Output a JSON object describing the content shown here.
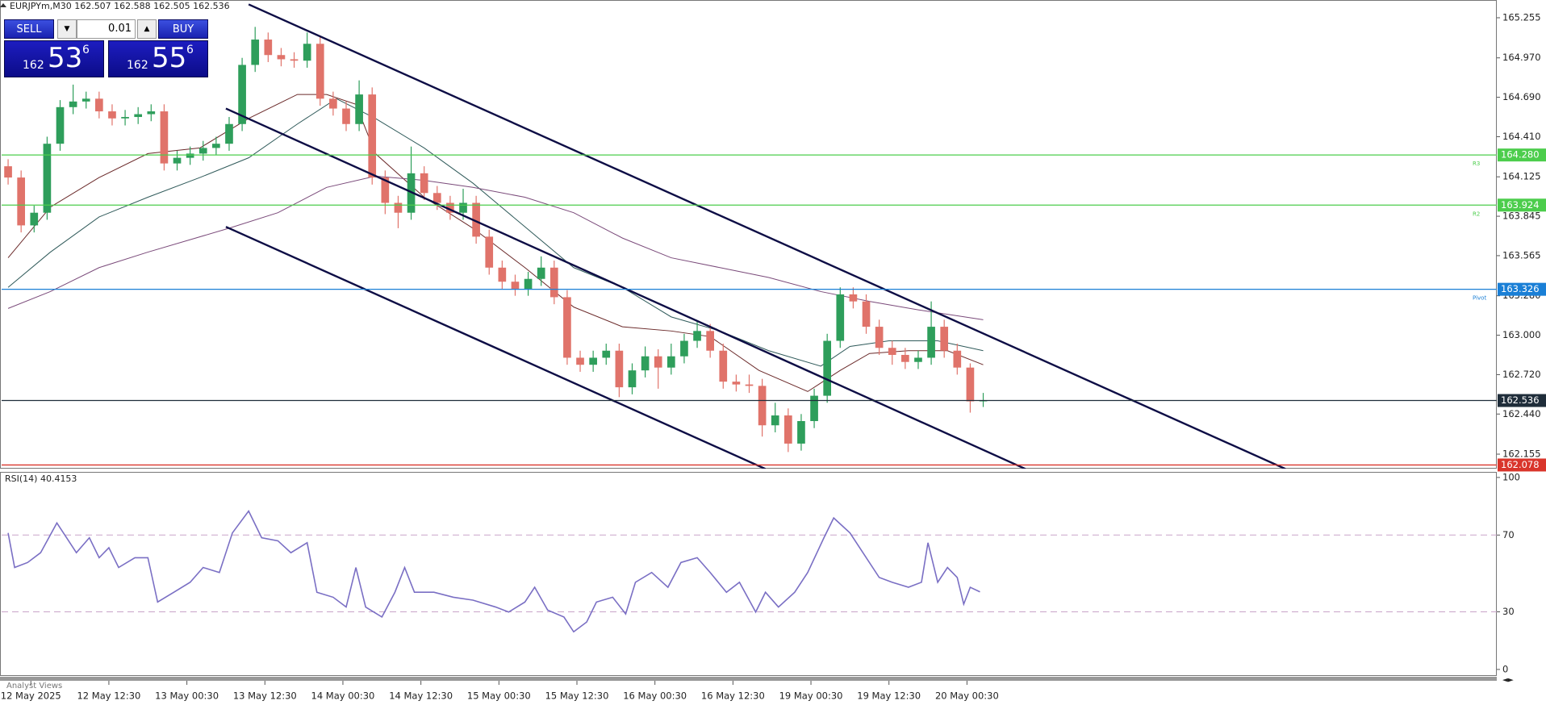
{
  "chart_data": [
    {
      "type": "candlestick",
      "title": "EURJPYm,M30  162.507 162.588 162.505 162.536",
      "up_color": "#2e9e5b",
      "down_color": "#e0736a",
      "xlim": [
        0,
        460
      ],
      "ylim": [
        162.052,
        165.381
      ],
      "yticks": [
        165.255,
        {
          "value": 164.97,
          "label": "164.970"
        },
        {
          "value": 164.69,
          "label": "164.690"
        },
        {
          "value": 164.41,
          "label": "164.410"
        },
        164.125,
        163.845,
        163.565,
        {
          "value": 163.28,
          "label": "163.280"
        },
        {
          "value": 163.0,
          "label": "163.000"
        },
        {
          "value": 162.72,
          "label": "162.720"
        },
        {
          "value": 162.44,
          "label": "162.440"
        },
        162.155
      ],
      "x": [
        2,
        6,
        10,
        14,
        18,
        22,
        26,
        30,
        34,
        38,
        42,
        46,
        50,
        54,
        58,
        62,
        66,
        70,
        74,
        78,
        82,
        86,
        90,
        94,
        98,
        102,
        106,
        110,
        114,
        118,
        122,
        126,
        130,
        134,
        138,
        142,
        146,
        150,
        154,
        158,
        162,
        166,
        170,
        174,
        178,
        182,
        186,
        190,
        194,
        198,
        202,
        206,
        210,
        214,
        218,
        222,
        226,
        230,
        234,
        238,
        242,
        246,
        250,
        254,
        258,
        262,
        266,
        270,
        274,
        278,
        282,
        286,
        290,
        294,
        298,
        302
      ],
      "open": [
        164.2,
        164.12,
        163.78,
        163.87,
        164.36,
        164.62,
        164.66,
        164.68,
        164.59,
        164.54,
        164.55,
        164.57,
        164.59,
        164.22,
        164.26,
        164.29,
        164.33,
        164.36,
        164.5,
        164.92,
        165.1,
        164.99,
        164.96,
        164.95,
        165.07,
        164.68,
        164.61,
        164.5,
        164.71,
        164.12,
        163.94,
        163.87,
        164.15,
        164.01,
        163.94,
        163.87,
        163.94,
        163.7,
        163.48,
        163.38,
        163.33,
        163.4,
        163.48,
        163.27,
        162.84,
        162.79,
        162.84,
        162.89,
        162.63,
        162.75,
        162.85,
        162.77,
        162.85,
        162.96,
        163.03,
        162.89,
        162.67,
        162.65,
        162.64,
        162.36,
        162.43,
        162.23,
        162.39,
        162.57,
        162.96,
        163.29,
        163.24,
        163.06,
        162.91,
        162.86,
        162.81,
        162.84,
        163.06,
        162.89,
        162.77,
        162.53
      ],
      "high": [
        164.25,
        164.17,
        163.92,
        164.41,
        164.67,
        164.78,
        164.73,
        164.73,
        164.64,
        164.6,
        164.62,
        164.64,
        164.64,
        164.31,
        164.34,
        164.38,
        164.41,
        164.55,
        164.97,
        165.19,
        165.15,
        165.04,
        165.01,
        165.15,
        165.12,
        164.73,
        164.66,
        164.81,
        164.76,
        164.17,
        163.99,
        164.34,
        164.2,
        164.06,
        163.99,
        164.04,
        163.99,
        163.75,
        163.53,
        163.43,
        163.45,
        163.56,
        163.53,
        163.32,
        162.89,
        162.89,
        162.94,
        162.94,
        162.8,
        162.92,
        162.9,
        162.94,
        163.01,
        163.1,
        163.08,
        162.94,
        162.72,
        162.72,
        162.69,
        162.52,
        162.48,
        162.44,
        162.62,
        163.01,
        163.34,
        163.34,
        163.29,
        163.11,
        162.96,
        162.91,
        162.89,
        163.24,
        163.11,
        162.94,
        162.8,
        162.59
      ],
      "low": [
        164.07,
        163.73,
        163.73,
        163.82,
        164.31,
        164.57,
        164.61,
        164.54,
        164.49,
        164.49,
        164.5,
        164.52,
        164.17,
        164.17,
        164.21,
        164.24,
        164.28,
        164.31,
        164.45,
        164.87,
        164.94,
        164.91,
        164.9,
        164.9,
        164.63,
        164.56,
        164.45,
        164.45,
        164.07,
        163.86,
        163.76,
        163.82,
        163.96,
        163.89,
        163.82,
        163.82,
        163.65,
        163.43,
        163.33,
        163.28,
        163.28,
        163.35,
        163.22,
        162.79,
        162.74,
        162.74,
        162.79,
        162.56,
        162.58,
        162.7,
        162.62,
        162.72,
        162.8,
        162.91,
        162.84,
        162.62,
        162.6,
        162.59,
        162.28,
        162.31,
        162.17,
        162.18,
        162.34,
        162.52,
        162.91,
        163.19,
        163.01,
        162.86,
        162.79,
        162.76,
        162.76,
        162.79,
        162.84,
        162.72,
        162.45,
        162.49
      ],
      "close": [
        164.12,
        163.78,
        163.87,
        164.36,
        164.62,
        164.66,
        164.68,
        164.59,
        164.54,
        164.55,
        164.57,
        164.59,
        164.22,
        164.26,
        164.29,
        164.33,
        164.36,
        164.5,
        164.92,
        165.1,
        164.99,
        164.96,
        164.95,
        165.07,
        164.68,
        164.61,
        164.5,
        164.71,
        164.12,
        163.94,
        163.87,
        164.15,
        164.01,
        163.94,
        163.87,
        163.94,
        163.7,
        163.48,
        163.38,
        163.33,
        163.4,
        163.48,
        163.27,
        162.84,
        162.79,
        162.84,
        162.89,
        162.63,
        162.75,
        162.85,
        162.77,
        162.85,
        162.96,
        163.03,
        162.89,
        162.67,
        162.65,
        162.64,
        162.36,
        162.43,
        162.23,
        162.39,
        162.57,
        162.96,
        163.29,
        163.24,
        163.06,
        162.91,
        162.86,
        162.81,
        162.84,
        163.06,
        162.89,
        162.77,
        162.53,
        162.536
      ],
      "moving_averages": [
        {
          "color": "#6b2a2a",
          "x": [
            2,
            15,
            30,
            45,
            61,
            76,
            91,
            100,
            109,
            115,
            130,
            145,
            161,
            176,
            191,
            206,
            218,
            233,
            248,
            258,
            267,
            279,
            291,
            302
          ],
          "values": [
            163.55,
            163.91,
            164.12,
            164.29,
            164.33,
            164.54,
            164.71,
            164.71,
            164.64,
            164.29,
            163.98,
            163.76,
            163.48,
            163.2,
            163.06,
            163.03,
            162.99,
            162.75,
            162.6,
            162.75,
            162.87,
            162.89,
            162.89,
            162.79
          ]
        },
        {
          "color": "#2f5a5a",
          "x": [
            2,
            15,
            30,
            45,
            61,
            76,
            91,
            103,
            115,
            130,
            145,
            161,
            176,
            191,
            206,
            221,
            236,
            252,
            261,
            273,
            288,
            302
          ],
          "values": [
            163.34,
            163.59,
            163.84,
            163.98,
            164.12,
            164.26,
            164.5,
            164.68,
            164.54,
            164.33,
            164.08,
            163.77,
            163.48,
            163.34,
            163.13,
            163.03,
            162.89,
            162.78,
            162.92,
            162.96,
            162.96,
            162.89
          ]
        },
        {
          "color": "#7a4a7a",
          "x": [
            2,
            15,
            30,
            45,
            70,
            85,
            100,
            115,
            130,
            145,
            161,
            176,
            191,
            206,
            221,
            236,
            252,
            267,
            282,
            302
          ],
          "values": [
            163.19,
            163.31,
            163.48,
            163.59,
            163.76,
            163.87,
            164.05,
            164.13,
            164.1,
            164.05,
            163.98,
            163.87,
            163.69,
            163.55,
            163.48,
            163.41,
            163.31,
            163.24,
            163.18,
            163.11
          ]
        }
      ],
      "trendlines": [
        {
          "color": "#0d0d45",
          "x": [
            76,
            395
          ],
          "values": [
            165.35,
            162.05
          ]
        },
        {
          "color": "#0d0d45",
          "x": [
            69,
            315
          ],
          "values": [
            164.61,
            162.05
          ]
        },
        {
          "color": "#0d0d45",
          "x": [
            69,
            235
          ],
          "values": [
            163.77,
            162.05
          ]
        }
      ],
      "levels": [
        {
          "value": 164.28,
          "label": "164.280",
          "color": "#4ccd4c",
          "tag": "R3"
        },
        {
          "value": 163.924,
          "label": "163.924",
          "color": "#4ccd4c",
          "tag": "R2"
        },
        {
          "value": 163.326,
          "label": "163.326",
          "color": "#1a7fd6",
          "tag": "Pivot"
        },
        {
          "value": 162.536,
          "label": "162.536",
          "color": "#1f2d3a"
        },
        {
          "value": 162.078,
          "label": "162.078",
          "color": "#d9352b"
        }
      ]
    },
    {
      "type": "line",
      "title": "RSI(14) 40.4153",
      "color": "#7a6fc4",
      "xlim": [
        0,
        460
      ],
      "ylim": [
        -3.4,
        102.9
      ],
      "yticks": [
        0,
        30,
        70,
        100
      ],
      "levels": [
        30,
        70
      ],
      "xticks": [
        {
          "value": 9,
          "label": "12 May 2025"
        },
        {
          "value": 33,
          "label": "12 May 12:30"
        },
        {
          "value": 57,
          "label": "13 May 00:30"
        },
        {
          "value": 81,
          "label": "13 May 12:30"
        },
        {
          "value": 105,
          "label": "14 May 00:30"
        },
        {
          "value": 129,
          "label": "14 May 12:30"
        },
        {
          "value": 153,
          "label": "15 May 00:30"
        },
        {
          "value": 177,
          "label": "15 May 12:30"
        },
        {
          "value": 201,
          "label": "16 May 00:30"
        },
        {
          "value": 225,
          "label": "16 May 12:30"
        },
        {
          "value": 249,
          "label": "19 May 00:30"
        },
        {
          "value": 273,
          "label": "19 May 12:30"
        },
        {
          "value": 297,
          "label": "20 May 00:30"
        }
      ],
      "x": [
        2,
        4,
        8,
        12,
        17,
        20,
        23,
        27,
        30,
        33,
        36,
        41,
        45,
        48,
        53,
        58,
        62,
        67,
        71,
        76,
        80,
        85,
        89,
        94,
        97,
        102,
        106,
        109,
        112,
        117,
        121,
        124,
        127,
        133,
        139,
        145,
        152,
        156,
        161,
        164,
        168,
        173,
        176,
        180,
        183,
        188,
        192,
        195,
        200,
        205,
        209,
        214,
        218,
        223,
        227,
        232,
        235,
        239,
        244,
        248,
        253,
        256,
        261,
        265,
        270,
        274,
        279,
        283,
        285,
        288,
        291,
        294,
        296,
        298,
        301
      ],
      "values": [
        71.1,
        53.1,
        55.7,
        60.8,
        76.3,
        68.6,
        60.8,
        68.6,
        58.2,
        63.4,
        53.1,
        58.2,
        58.2,
        35.1,
        40.2,
        45.4,
        53.1,
        50.5,
        71.1,
        82.5,
        68.6,
        67.0,
        60.8,
        66.0,
        40.2,
        37.6,
        32.5,
        53.1,
        32.5,
        27.3,
        40.2,
        53.1,
        40.2,
        40.2,
        37.6,
        36.1,
        32.5,
        29.9,
        35.1,
        42.8,
        30.9,
        27.3,
        19.6,
        24.7,
        35.1,
        37.6,
        28.9,
        45.4,
        50.5,
        42.8,
        55.7,
        58.2,
        50.5,
        40.2,
        45.4,
        29.9,
        40.2,
        32.5,
        40.2,
        50.5,
        68.6,
        78.9,
        71.1,
        60.8,
        47.9,
        45.4,
        42.8,
        45.4,
        66.0,
        45.4,
        53.1,
        47.9,
        34.0,
        42.8,
        40.4
      ]
    }
  ],
  "trade_panel": {
    "sell": "SELL",
    "lot": "0.01",
    "buy": "BUY",
    "bid": {
      "big": "162",
      "pips": "53",
      "point": "6"
    },
    "ask": {
      "big": "162",
      "pips": "55",
      "point": "6"
    }
  },
  "footer_tab": "Analyst Views"
}
